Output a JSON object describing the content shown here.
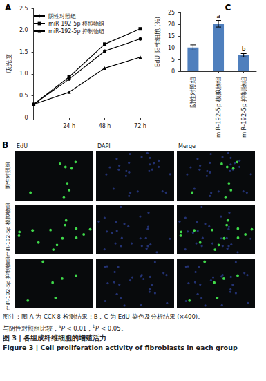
{
  "chart_data": [
    {
      "type": "line",
      "title": "A",
      "y_label": "吸光度",
      "categories": [
        null,
        "24 h",
        "48 h",
        "72 h"
      ],
      "series": [
        {
          "name": "阴性对照组",
          "color": "#000000",
          "marker": "circle",
          "values": [
            0.3,
            0.88,
            1.52,
            1.8
          ]
        },
        {
          "name": "miR-192-5p 模拟物组",
          "color": "#000000",
          "marker": "square",
          "values": [
            0.3,
            0.93,
            1.68,
            2.03
          ]
        },
        {
          "name": "miR-192-5p 抑制物组",
          "color": "#000000",
          "marker": "triangle",
          "values": [
            0.3,
            0.58,
            1.13,
            1.38
          ]
        }
      ],
      "ylim": [
        0,
        2.5
      ],
      "yticks": [
        0,
        0.5,
        {
          "value": 1,
          "label": "1.0"
        },
        1.5,
        {
          "value": 2,
          "label": "2.0"
        },
        2.5
      ],
      "legend": "upper left"
    },
    {
      "type": "bar",
      "title": "C",
      "y_label": "EdU 阳性细胞 (%)",
      "categories": [
        "阴性对照组",
        "miR-192-5p 模拟物组",
        "miR-192-5p 抑制物组"
      ],
      "values": [
        10.1,
        20.2,
        6.8
      ],
      "errors": [
        1.1,
        1.4,
        0.7
      ],
      "annotations": [
        null,
        "a",
        "b"
      ],
      "color": "#4f7fbd",
      "ylim": [
        0,
        25
      ],
      "yticks": [
        0,
        5,
        10,
        15,
        20,
        25
      ]
    }
  ],
  "image_panel": {
    "label": "B",
    "columns": [
      "EdU",
      "DAPI",
      "Merge"
    ],
    "rows": [
      "阴性对照组",
      "miR-192-5p 模拟物组",
      "miR-192-5p 抑制物组"
    ]
  },
  "caption": {
    "note_lines": [
      [
        {
          "text": "图注：图 A 为 CCK-8 检测结果；B，C 为 EdU 染色及分析结果 (×400)。"
        }
      ],
      [
        {
          "text": "与阴性对照组比较，"
        },
        {
          "text": "a",
          "sup": true
        },
        {
          "text": "P",
          "italic": true
        },
        {
          "text": " < 0.01，"
        },
        {
          "text": "b",
          "sup": true
        },
        {
          "text": "P",
          "italic": true
        },
        {
          "text": " < 0.05。"
        }
      ]
    ],
    "title_zh": "图 3 | 各组成纤维细胞的增殖活力",
    "title_en": "Figure 3 | Cell proliferation activity of fibroblasts in each group"
  }
}
